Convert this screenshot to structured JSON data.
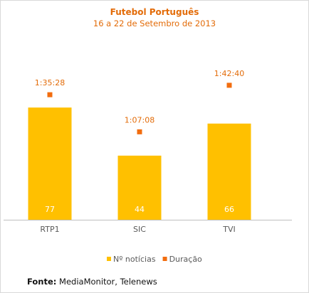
{
  "chart_data": {
    "type": "bar",
    "title": "Futebol Português",
    "subtitle": "16 a 22 de Setembro de 2013",
    "categories": [
      "RTP1",
      "SIC",
      "TVI"
    ],
    "series": [
      {
        "name": "Nº notícias",
        "values": [
          77,
          44,
          66
        ],
        "labels": [
          "77",
          "44",
          "66"
        ],
        "color": "#ffc000"
      },
      {
        "name": "Duração",
        "values": [
          5728,
          4028,
          6160
        ],
        "labels": [
          "1:35:28",
          "1:07:08",
          "1:42:40"
        ],
        "color": "#f26d0f"
      }
    ],
    "legend": "bottom",
    "grid": false,
    "bar_ylim": [
      0,
      102
    ],
    "duration_ylim": [
      0,
      7200
    ],
    "xlabel": "",
    "ylabel": ""
  },
  "colors": {
    "accent": "#e36c09",
    "bar_label": "#ffffff",
    "axis_text": "#595959",
    "axis_line": "#bfbfbf"
  },
  "source": {
    "label": "Fonte:",
    "text": "MediaMonitor, Telenews"
  }
}
